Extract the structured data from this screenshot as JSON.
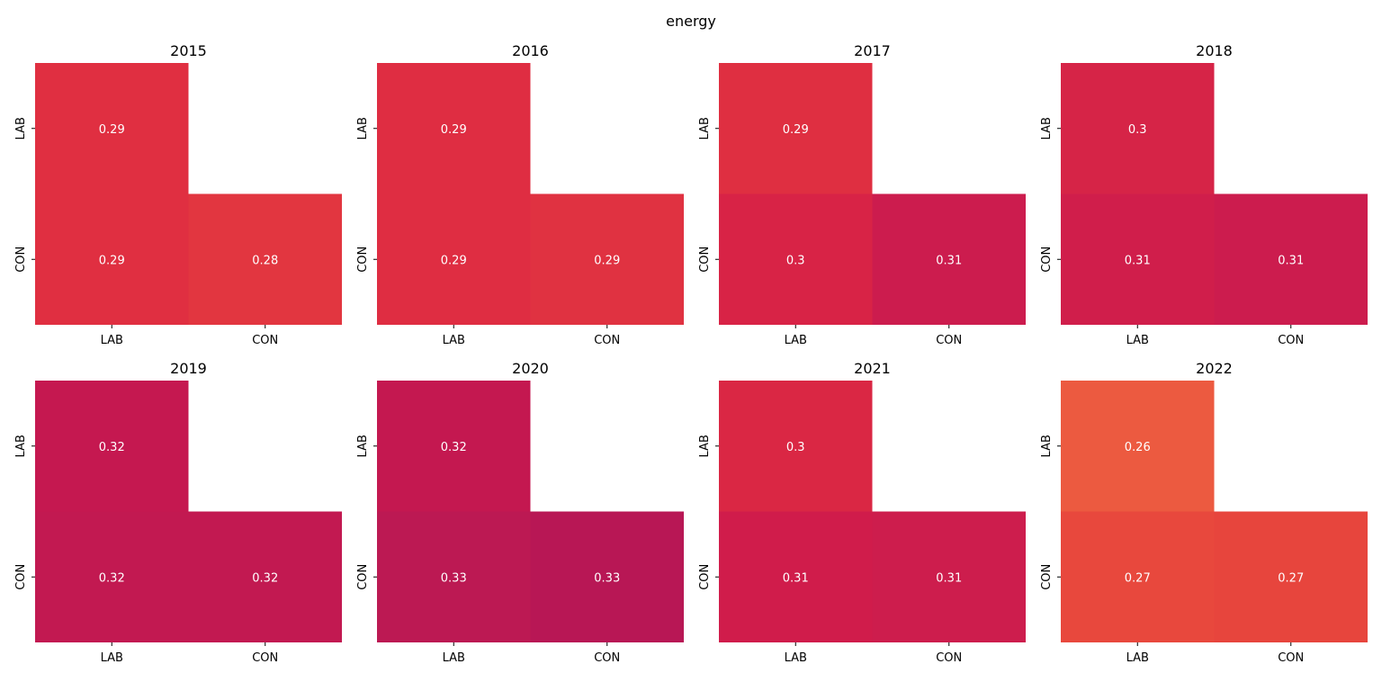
{
  "figure": {
    "suptitle": "energy"
  },
  "chart_data": [
    {
      "type": "heatmap",
      "title": "2015",
      "x_categories": [
        "LAB",
        "CON"
      ],
      "y_categories": [
        "LAB",
        "CON"
      ],
      "values": [
        [
          0.29,
          null
        ],
        [
          0.29,
          0.28
        ]
      ],
      "cell_colors": [
        [
          "#e02f41",
          null
        ],
        [
          "#e02f41",
          "#e23640"
        ]
      ]
    },
    {
      "type": "heatmap",
      "title": "2016",
      "x_categories": [
        "LAB",
        "CON"
      ],
      "y_categories": [
        "LAB",
        "CON"
      ],
      "values": [
        [
          0.29,
          null
        ],
        [
          0.29,
          0.29
        ]
      ],
      "cell_colors": [
        [
          "#df2d42",
          null
        ],
        [
          "#df2d42",
          "#e03241"
        ]
      ]
    },
    {
      "type": "heatmap",
      "title": "2017",
      "x_categories": [
        "LAB",
        "CON"
      ],
      "y_categories": [
        "LAB",
        "CON"
      ],
      "values": [
        [
          0.29,
          null
        ],
        [
          0.3,
          0.31
        ]
      ],
      "cell_colors": [
        [
          "#df2f41",
          null
        ],
        [
          "#d82346",
          "#cc1c4e"
        ]
      ]
    },
    {
      "type": "heatmap",
      "title": "2018",
      "x_categories": [
        "LAB",
        "CON"
      ],
      "y_categories": [
        "LAB",
        "CON"
      ],
      "values": [
        [
          0.3,
          null
        ],
        [
          0.31,
          0.31
        ]
      ],
      "cell_colors": [
        [
          "#d62447",
          null
        ],
        [
          "#d01e4b",
          "#cc1c4e"
        ]
      ]
    },
    {
      "type": "heatmap",
      "title": "2019",
      "x_categories": [
        "LAB",
        "CON"
      ],
      "y_categories": [
        "LAB",
        "CON"
      ],
      "values": [
        [
          0.32,
          null
        ],
        [
          0.32,
          0.32
        ]
      ],
      "cell_colors": [
        [
          "#c51850",
          null
        ],
        [
          "#c21951",
          "#c21951"
        ]
      ]
    },
    {
      "type": "heatmap",
      "title": "2020",
      "x_categories": [
        "LAB",
        "CON"
      ],
      "y_categories": [
        "LAB",
        "CON"
      ],
      "values": [
        [
          0.32,
          null
        ],
        [
          0.33,
          0.33
        ]
      ],
      "cell_colors": [
        [
          "#c41850",
          null
        ],
        [
          "#bc1953",
          "#b81755"
        ]
      ]
    },
    {
      "type": "heatmap",
      "title": "2021",
      "x_categories": [
        "LAB",
        "CON"
      ],
      "y_categories": [
        "LAB",
        "CON"
      ],
      "values": [
        [
          0.3,
          null
        ],
        [
          0.31,
          0.31
        ]
      ],
      "cell_colors": [
        [
          "#da2744",
          null
        ],
        [
          "#d01c4b",
          "#cd1d4d"
        ]
      ]
    },
    {
      "type": "heatmap",
      "title": "2022",
      "x_categories": [
        "LAB",
        "CON"
      ],
      "y_categories": [
        "LAB",
        "CON"
      ],
      "values": [
        [
          0.26,
          null
        ],
        [
          0.27,
          0.27
        ]
      ],
      "cell_colors": [
        [
          "#ec5a40",
          null
        ],
        [
          "#e8483d",
          "#e7453d"
        ]
      ]
    }
  ]
}
